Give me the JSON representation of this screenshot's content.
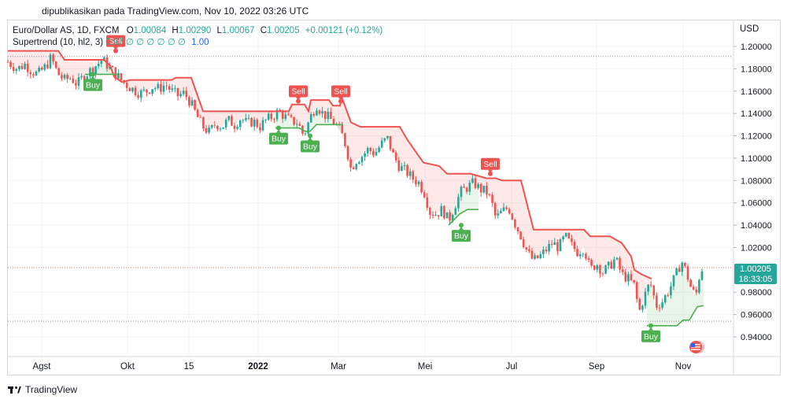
{
  "published_text": "dipublikasikan pada TradingView.com, Nov 10, 2022 03:26 UTC",
  "footer_brand": "TradingView",
  "legend": {
    "symbol": "Euro/Dollar AS, 1D, FXCM",
    "o_label": "O",
    "o_value": "1.00084",
    "h_label": "H",
    "h_value": "1.00290",
    "l_label": "L",
    "l_value": "1.00067",
    "c_label": "C",
    "c_value": "1.00205",
    "change": "+0.00121 (+0.12%)",
    "indicator_name": "Supertrend (10, hl2, 3)",
    "indicator_values": "0.97 ∅ ∅ ∅ ∅ ∅ ∅",
    "indicator_last": "1.00"
  },
  "price_badge": {
    "price": "1.00205",
    "countdown": "18:33:05"
  },
  "colors": {
    "up": "#26a69a",
    "down": "#ef5350",
    "sell": "#ef5350",
    "buy": "#4caf50"
  },
  "chart_data": {
    "type": "candlestick",
    "symbol": "Euro/Dollar AS, 1D, FXCM",
    "ylabel": "USD",
    "ylim": [
      0.92,
      1.21
    ],
    "y_ticks": [
      "1.20000",
      "1.18000",
      "1.16000",
      "1.14000",
      "1.12000",
      "1.10000",
      "1.08000",
      "1.06000",
      "1.04000",
      "1.02000",
      "0.98000",
      "0.96000",
      "0.94000"
    ],
    "x_ticks": [
      "Agst",
      "Okt",
      "15",
      "2022",
      "Mar",
      "Mei",
      "Jul",
      "Sep",
      "Nov"
    ],
    "last_price": 1.00205,
    "horizontal_levels": [
      1.191,
      1.00205,
      0.954
    ],
    "close_path": [
      [
        0,
        1.186
      ],
      [
        12,
        1.18
      ],
      [
        22,
        1.184
      ],
      [
        30,
        1.178
      ],
      [
        38,
        1.175
      ],
      [
        48,
        1.182
      ],
      [
        55,
        1.19
      ],
      [
        63,
        1.176
      ],
      [
        72,
        1.17
      ],
      [
        80,
        1.172
      ],
      [
        88,
        1.166
      ],
      [
        96,
        1.173
      ],
      [
        104,
        1.178
      ],
      [
        112,
        1.183
      ],
      [
        120,
        1.188
      ],
      [
        128,
        1.182
      ],
      [
        136,
        1.176
      ],
      [
        144,
        1.17
      ],
      [
        152,
        1.165
      ],
      [
        160,
        1.161
      ],
      [
        168,
        1.158
      ],
      [
        176,
        1.16
      ],
      [
        184,
        1.164
      ],
      [
        192,
        1.162
      ],
      [
        200,
        1.166
      ],
      [
        208,
        1.16
      ],
      [
        216,
        1.156
      ],
      [
        224,
        1.158
      ],
      [
        232,
        1.15
      ],
      [
        240,
        1.138
      ],
      [
        248,
        1.128
      ],
      [
        256,
        1.123
      ],
      [
        264,
        1.131
      ],
      [
        272,
        1.128
      ],
      [
        280,
        1.134
      ],
      [
        288,
        1.13
      ],
      [
        296,
        1.136
      ],
      [
        304,
        1.131
      ],
      [
        312,
        1.133
      ],
      [
        320,
        1.128
      ],
      [
        328,
        1.134
      ],
      [
        336,
        1.137
      ],
      [
        344,
        1.142
      ],
      [
        352,
        1.137
      ],
      [
        360,
        1.133
      ],
      [
        368,
        1.132
      ],
      [
        376,
        1.12
      ],
      [
        384,
        1.136
      ],
      [
        392,
        1.148
      ],
      [
        400,
        1.14
      ],
      [
        408,
        1.136
      ],
      [
        416,
        1.131
      ],
      [
        424,
        1.122
      ],
      [
        430,
        1.11
      ],
      [
        436,
        1.09
      ],
      [
        442,
        1.098
      ],
      [
        450,
        1.102
      ],
      [
        458,
        1.108
      ],
      [
        466,
        1.104
      ],
      [
        474,
        1.112
      ],
      [
        482,
        1.118
      ],
      [
        490,
        1.102
      ],
      [
        498,
        1.092
      ],
      [
        506,
        1.088
      ],
      [
        514,
        1.082
      ],
      [
        522,
        1.078
      ],
      [
        530,
        1.068
      ],
      [
        536,
        1.052
      ],
      [
        544,
        1.05
      ],
      [
        552,
        1.054
      ],
      [
        560,
        1.044
      ],
      [
        568,
        1.058
      ],
      [
        576,
        1.07
      ],
      [
        584,
        1.074
      ],
      [
        592,
        1.078
      ],
      [
        600,
        1.072
      ],
      [
        608,
        1.07
      ],
      [
        614,
        1.062
      ],
      [
        620,
        1.046
      ],
      [
        628,
        1.052
      ],
      [
        636,
        1.056
      ],
      [
        644,
        1.042
      ],
      [
        652,
        1.03
      ],
      [
        660,
        1.016
      ],
      [
        668,
        1.008
      ],
      [
        676,
        1.012
      ],
      [
        684,
        1.018
      ],
      [
        692,
        1.024
      ],
      [
        700,
        1.02
      ],
      [
        708,
        1.03
      ],
      [
        716,
        1.022
      ],
      [
        724,
        1.016
      ],
      [
        732,
        1.02
      ],
      [
        740,
        1.0
      ],
      [
        748,
        1.006
      ],
      [
        756,
        0.998
      ],
      [
        764,
        1.003
      ],
      [
        772,
        1.01
      ],
      [
        780,
        0.996
      ],
      [
        788,
        0.992
      ],
      [
        796,
        0.986
      ],
      [
        802,
        0.962
      ],
      [
        808,
        0.975
      ],
      [
        816,
        0.989
      ],
      [
        824,
        0.968
      ],
      [
        832,
        0.972
      ],
      [
        840,
        0.982
      ],
      [
        848,
        0.994
      ],
      [
        856,
        1.008
      ],
      [
        862,
        0.998
      ],
      [
        868,
        0.984
      ],
      [
        874,
        0.976
      ],
      [
        880,
        1.0
      ],
      [
        884,
        1.002
      ]
    ],
    "supertrend_resistance": [
      [
        0,
        1.196
      ],
      [
        64,
        1.196
      ],
      [
        72,
        1.188
      ],
      [
        122,
        1.188
      ],
      [
        130,
        1.183
      ],
      [
        135,
        1.173
      ],
      [
        145,
        1.168
      ],
      [
        155,
        1.17
      ],
      [
        208,
        1.17
      ],
      [
        213,
        1.172
      ],
      [
        233,
        1.172
      ],
      [
        238,
        1.162
      ],
      [
        248,
        1.142
      ],
      [
        357,
        1.142
      ],
      [
        361,
        1.148
      ],
      [
        377,
        1.148
      ],
      [
        382,
        1.142
      ],
      [
        385,
        1.152
      ],
      [
        408,
        1.152
      ],
      [
        413,
        1.147
      ],
      [
        422,
        1.147
      ],
      [
        424,
        1.155
      ],
      [
        436,
        1.132
      ],
      [
        448,
        1.128
      ],
      [
        498,
        1.128
      ],
      [
        508,
        1.116
      ],
      [
        528,
        1.096
      ],
      [
        548,
        1.093
      ],
      [
        558,
        1.086
      ],
      [
        588,
        1.086
      ],
      [
        598,
        1.084
      ],
      [
        608,
        1.082
      ],
      [
        620,
        1.082
      ],
      [
        628,
        1.08
      ],
      [
        652,
        1.08
      ],
      [
        668,
        1.036
      ],
      [
        732,
        1.036
      ],
      [
        740,
        1.03
      ],
      [
        765,
        1.03
      ],
      [
        780,
        1.024
      ],
      [
        792,
        1.012
      ],
      [
        796,
        1.0
      ],
      [
        805,
        0.996
      ],
      [
        818,
        0.992
      ]
    ],
    "supertrend_support": [
      [
        98,
        1.175
      ],
      [
        142,
        1.175
      ],
      [
        340,
        1.127
      ],
      [
        370,
        1.127
      ],
      [
        378,
        1.124
      ],
      [
        384,
        1.124
      ],
      [
        392,
        1.13
      ],
      [
        426,
        1.13
      ],
      [
        560,
        1.04
      ],
      [
        574,
        1.05
      ],
      [
        584,
        1.054
      ],
      [
        598,
        1.054
      ],
      [
        812,
        0.95
      ],
      [
        850,
        0.95
      ],
      [
        858,
        0.955
      ],
      [
        866,
        0.955
      ],
      [
        876,
        0.967
      ],
      [
        884,
        0.968
      ]
    ],
    "signals": [
      {
        "type": "Sell",
        "x": 137,
        "y": 1.196
      },
      {
        "type": "Buy",
        "x": 108,
        "y": 1.175
      },
      {
        "type": "Sell",
        "x": 369,
        "y": 1.151
      },
      {
        "type": "Buy",
        "x": 344,
        "y": 1.127
      },
      {
        "type": "Sell",
        "x": 423,
        "y": 1.151
      },
      {
        "type": "Buy",
        "x": 384,
        "y": 1.12
      },
      {
        "type": "Sell",
        "x": 613,
        "y": 1.086
      },
      {
        "type": "Buy",
        "x": 576,
        "y": 1.04
      },
      {
        "type": "Buy",
        "x": 817,
        "y": 0.95
      }
    ]
  }
}
